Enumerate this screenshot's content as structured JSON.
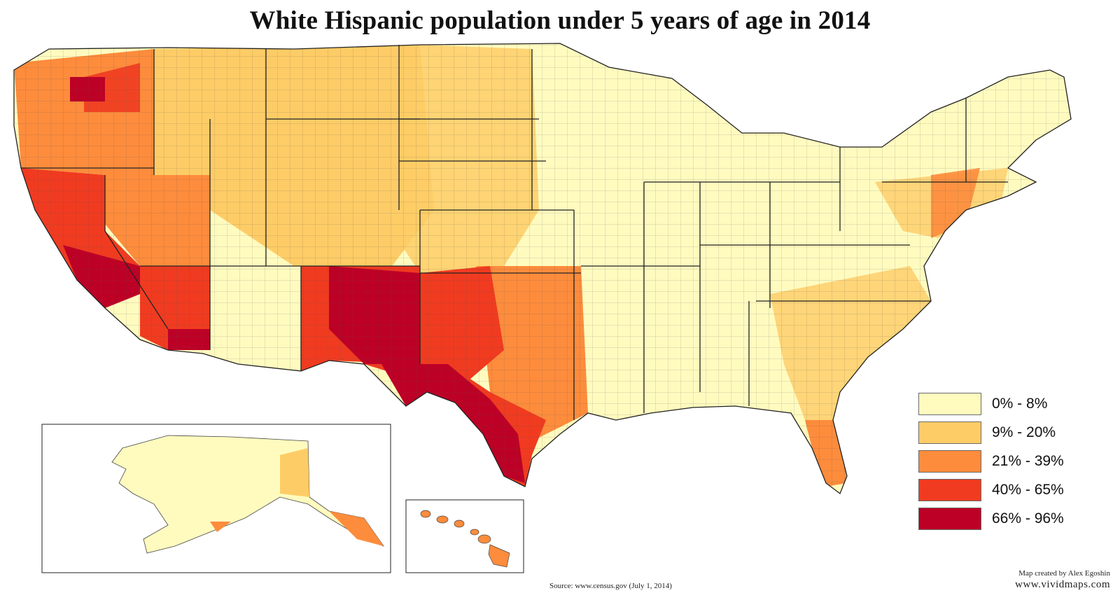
{
  "map": {
    "title": "White Hispanic population under 5 years of age in 2014",
    "source": "Source: www.census.gov (July 1, 2014)",
    "credit": "Map created by Alex Egoshin",
    "website": "www.vividmaps.com",
    "colors": {
      "bin1": "#fffbbf",
      "bin2": "#fecc66",
      "bin3": "#fd8c3c",
      "bin4": "#f03b20",
      "bin5": "#bd0026",
      "border": "#333333"
    },
    "legend": [
      {
        "label": "0% - 8%",
        "color": "#fffbbf"
      },
      {
        "label": "9% - 20%",
        "color": "#fecc66"
      },
      {
        "label": "21% - 39%",
        "color": "#fd8c3c"
      },
      {
        "label": "40% - 65%",
        "color": "#f03b20"
      },
      {
        "label": "66% - 96%",
        "color": "#bd0026"
      }
    ]
  }
}
